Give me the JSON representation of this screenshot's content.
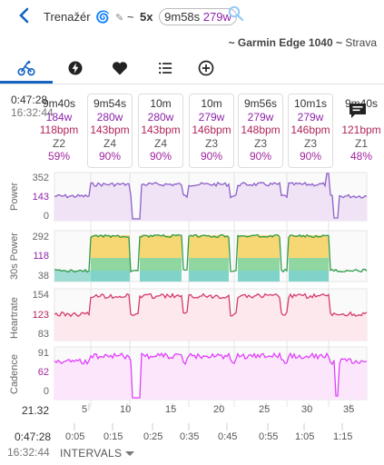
{
  "header": {
    "title": "Trenažér",
    "multiplier": "5x",
    "duration": "9m58s",
    "power": "279w",
    "subtitle_device": "~ Garmin Edge 1040 ~",
    "subtitle_source": "Strava"
  },
  "tabs": [
    "bike-icon",
    "bolt-icon",
    "heart-icon",
    "list-icon",
    "add-circle-icon"
  ],
  "colors": {
    "accent": "#1565c0",
    "power": "#8e24aa",
    "heartrate": "#b0245a",
    "cadence": "#e040fb"
  },
  "left": {
    "time_top": "0:47:28",
    "time_sub": "16:32:44"
  },
  "cards": [
    {
      "duration": "9m40s",
      "power": "184w",
      "hr": "118bpm",
      "zone": "Z2",
      "pct": "59%"
    },
    {
      "duration": "9m54s",
      "power": "280w",
      "hr": "143bpm",
      "zone": "Z4",
      "pct": "90%"
    },
    {
      "duration": "10m",
      "power": "280w",
      "hr": "143bpm",
      "zone": "Z4",
      "pct": "90%"
    },
    {
      "duration": "10m",
      "power": "279w",
      "hr": "146bpm",
      "zone": "Z3",
      "pct": "90%"
    },
    {
      "duration": "9m56s",
      "power": "279w",
      "hr": "148bpm",
      "zone": "Z3",
      "pct": "90%"
    },
    {
      "duration": "10m1s",
      "power": "279w",
      "hr": "146bpm",
      "zone": "Z3",
      "pct": "90%"
    },
    {
      "duration": "9m40s",
      "power": "",
      "hr": "121bpm",
      "zone": "Z1",
      "pct": "48%"
    }
  ],
  "axes": {
    "power": {
      "label": "Power",
      "max": "352",
      "value": "143",
      "min": "0"
    },
    "p30": {
      "label": "30s Power",
      "max": "292",
      "value": "118",
      "min": "38"
    },
    "hr": {
      "label": "Heartrate",
      "max": "154",
      "value": "123",
      "min": "83"
    },
    "cad": {
      "label": "Cadence",
      "max": "91",
      "value": "62",
      "min": "0"
    }
  },
  "distance_axis": {
    "start": "21.32",
    "ticks": [
      "5",
      "10",
      "15",
      "20",
      "25",
      "30",
      "35"
    ]
  },
  "time_axis": {
    "top": "0:47:28",
    "sub": "16:32:44",
    "ticks": [
      "0:05",
      "0:15",
      "0:25",
      "0:35",
      "0:45",
      "0:55",
      "1:05",
      "1:15"
    ]
  },
  "intervals_label": "INTERVALS"
}
